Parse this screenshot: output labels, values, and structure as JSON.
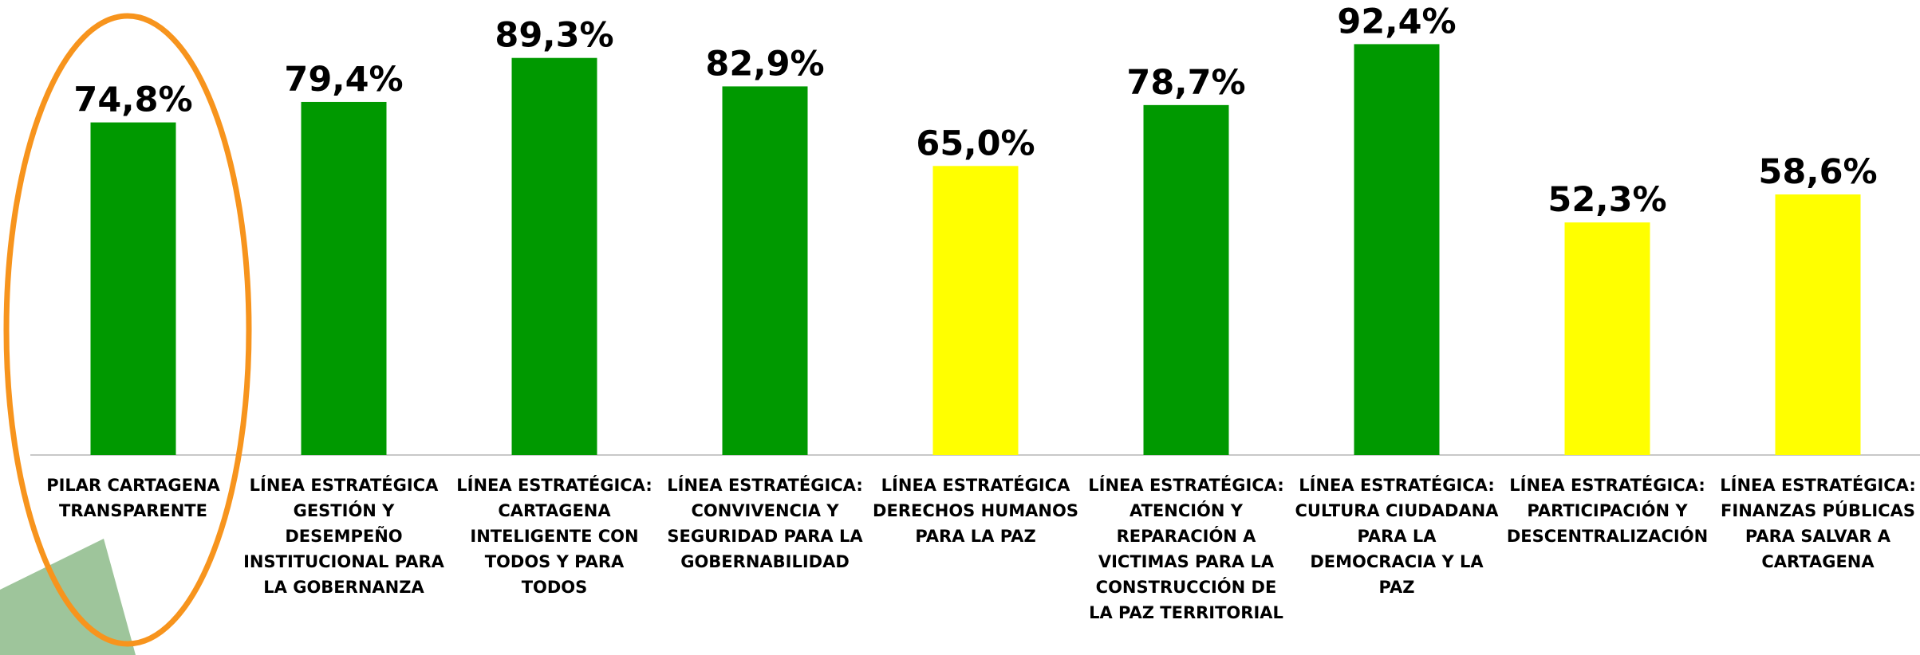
{
  "chart_data": {
    "type": "bar",
    "categories": [
      "PILAR CARTAGENA TRANSPARENTE",
      "LÍNEA ESTRATÉGICA GESTIÓN Y DESEMPEÑO INSTITUCIONAL PARA LA GOBERNANZA",
      "LÍNEA ESTRATÉGICA: CARTAGENA INTELIGENTE CON TODOS Y PARA TODOS",
      "LÍNEA ESTRATÉGICA: CONVIVENCIA Y SEGURIDAD PARA LA GOBERNABILIDAD",
      "LÍNEA ESTRATÉGICA DERECHOS HUMANOS PARA LA PAZ",
      "LÍNEA ESTRATÉGICA: ATENCIÓN Y REPARACIÓN A VICTIMAS PARA LA CONSTRUCCIÓN DE LA PAZ TERRITORIAL",
      "LÍNEA ESTRATÉGICA: CULTURA CIUDADANA PARA LA DEMOCRACIA Y LA PAZ",
      "LÍNEA ESTRATÉGICA: PARTICIPACIÓN Y DESCENTRALIZACIÓN",
      "LÍNEA ESTRATÉGICA: FINANZAS PÚBLICAS PARA SALVAR A CARTAGENA"
    ],
    "values": [
      74.8,
      79.4,
      89.3,
      82.9,
      65.0,
      78.7,
      92.4,
      52.3,
      58.6
    ],
    "value_labels": [
      "74,8%",
      "79,4%",
      "89,3%",
      "82,9%",
      "65,0%",
      "78,7%",
      "92,4%",
      "52,3%",
      "58,6%"
    ],
    "colors": [
      "#009900",
      "#009900",
      "#009900",
      "#009900",
      "#ffff00",
      "#009900",
      "#009900",
      "#ffff00",
      "#ffff00"
    ],
    "ylim": [
      0,
      100
    ]
  }
}
